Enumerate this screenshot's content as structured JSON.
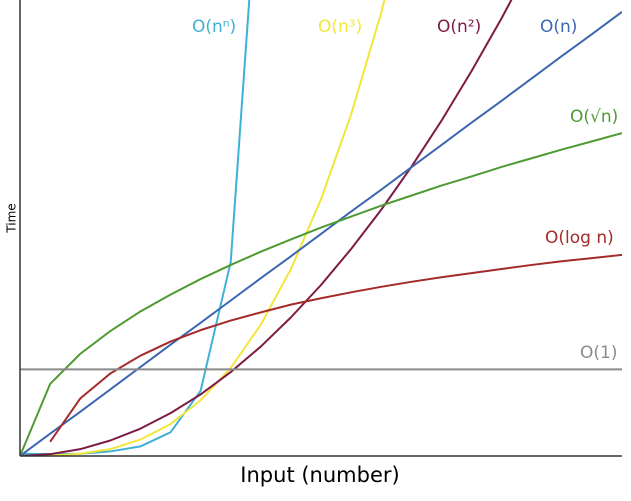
{
  "chart_data": {
    "type": "line",
    "x_label": "Input (number)",
    "y_label": "Time",
    "xlim": [
      0,
      10
    ],
    "ylim": [
      0,
      10
    ],
    "x": [
      0,
      0.5,
      1,
      1.5,
      2,
      2.5,
      3,
      3.5,
      4,
      4.5,
      5,
      5.5,
      6,
      6.5,
      7,
      7.5,
      8,
      8.5,
      9,
      9.5,
      10
    ],
    "series": [
      {
        "name": "O(nⁿ)",
        "color": "#3fb0d8",
        "values": [
          0.05,
          0.04,
          0.05,
          0.1,
          0.21,
          0.52,
          1.43,
          4.25,
          13.57,
          null,
          null,
          null,
          null,
          null,
          null,
          null,
          null,
          null,
          null,
          null,
          null
        ]
      },
      {
        "name": "O(n³)",
        "color": "#f3e63a",
        "values": [
          0,
          0.01,
          0.05,
          0.15,
          0.36,
          0.7,
          1.22,
          1.93,
          2.88,
          4.1,
          5.63,
          7.49,
          9.72,
          12.36,
          null,
          null,
          null,
          null,
          null,
          null,
          null
        ]
      },
      {
        "name": "O(n²)",
        "color": "#7d1a45",
        "values": [
          0,
          0.04,
          0.15,
          0.34,
          0.6,
          0.94,
          1.35,
          1.84,
          2.4,
          3.04,
          3.75,
          4.54,
          5.4,
          6.34,
          7.35,
          8.44,
          9.6,
          10.84,
          null,
          null,
          null
        ]
      },
      {
        "name": "O(n)",
        "color": "#3d66b0",
        "values": [
          0,
          0.49,
          0.97,
          1.46,
          1.95,
          2.44,
          2.92,
          3.41,
          3.9,
          4.38,
          4.87,
          5.36,
          5.84,
          6.33,
          6.82,
          7.31,
          7.79,
          8.28,
          8.77,
          9.25,
          9.74
        ]
      },
      {
        "name": "O(√n)",
        "color": "#4e9a33",
        "values": [
          0,
          1.58,
          2.24,
          2.74,
          3.17,
          3.54,
          3.88,
          4.19,
          4.48,
          4.75,
          5.01,
          5.25,
          5.49,
          5.71,
          5.93,
          6.13,
          6.34,
          6.53,
          6.72,
          6.9,
          7.08
        ]
      },
      {
        "name": "O(log n)",
        "color": "#a52a2a",
        "values": [
          null,
          0.31,
          1.26,
          1.81,
          2.2,
          2.51,
          2.76,
          2.97,
          3.15,
          3.32,
          3.46,
          3.59,
          3.71,
          3.82,
          3.92,
          4.01,
          4.1,
          4.19,
          4.27,
          4.34,
          4.41
        ]
      },
      {
        "name": "O(1)",
        "color": "#8a8a8a",
        "values": [
          1.9,
          1.9,
          1.9,
          1.9,
          1.9,
          1.9,
          1.9,
          1.9,
          1.9,
          1.9,
          1.9,
          1.9,
          1.9,
          1.9,
          1.9,
          1.9,
          1.9,
          1.9,
          1.9,
          1.9,
          1.9
        ]
      }
    ]
  }
}
